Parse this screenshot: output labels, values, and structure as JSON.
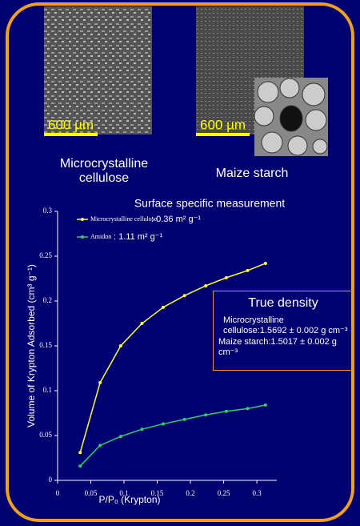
{
  "images": [
    {
      "scale_label": "600 µm",
      "caption": "Microcrystalline cellulose"
    },
    {
      "scale_label": "600 µm",
      "caption": "Maize starch"
    }
  ],
  "chart_data": {
    "type": "line",
    "title": "Surface specific measurement",
    "x_label": "P/P₀ (Krypton)",
    "y_label": "Volume of Krypton Adsorbed (cm³ g⁻¹)",
    "x": [
      0.034,
      0.064,
      0.095,
      0.127,
      0.159,
      0.191,
      0.223,
      0.254,
      0.286,
      0.313
    ],
    "series": [
      {
        "name": "Microcrystalline cellulose",
        "annotation": ": 0.36 m² g⁻¹",
        "color": "#ffff33",
        "values": [
          0.031,
          0.109,
          0.15,
          0.175,
          0.193,
          0.206,
          0.217,
          0.226,
          0.234,
          0.242
        ]
      },
      {
        "name": "Amidon",
        "annotation": ": 1.11 m² g⁻¹",
        "color": "#33cc66",
        "values": [
          0.016,
          0.039,
          0.049,
          0.057,
          0.063,
          0.068,
          0.073,
          0.077,
          0.08,
          0.084
        ]
      }
    ],
    "xlim": [
      0,
      0.33
    ],
    "ylim": [
      0,
      0.3
    ],
    "xticks": [
      0,
      0.05,
      0.1,
      0.15,
      0.2,
      0.25,
      0.3
    ],
    "yticks": [
      0,
      0.05,
      0.1,
      0.15,
      0.2,
      0.25,
      0.3
    ]
  },
  "true_density": {
    "title": "True density",
    "lines": [
      "Microcrystalline cellulose:1.5692 ± 0.002 g cm⁻³",
      "Maize starch:1.5017 ± 0.002 g cm⁻³"
    ]
  }
}
